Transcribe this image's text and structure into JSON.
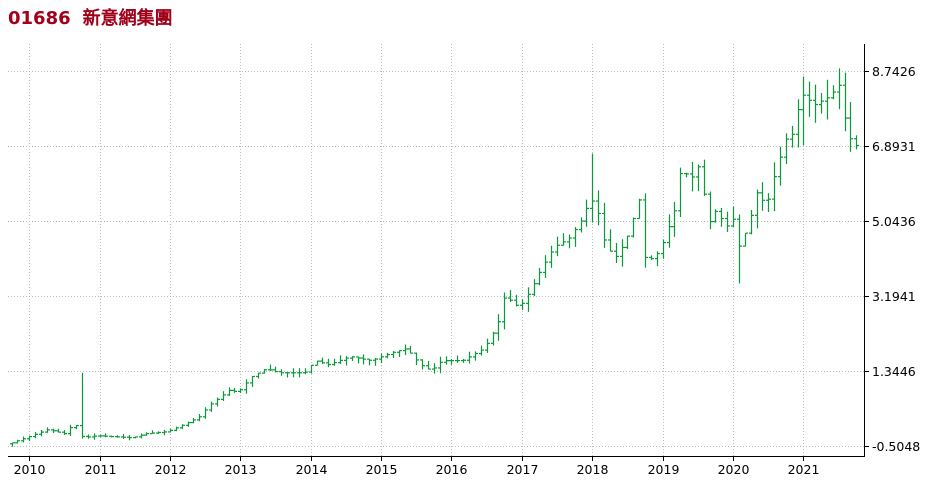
{
  "title": {
    "code": "01686",
    "name": "新意網集團"
  },
  "chart_data": {
    "type": "bar",
    "subtype": "ohlc-monthly",
    "series_color": "#0a9a3a",
    "grid": true,
    "grid_color": "#bcbcbc",
    "y_axis_position": "right",
    "ylim": [
      -0.75,
      9.4
    ],
    "yticks": [
      -0.5048,
      1.3446,
      3.1941,
      5.0436,
      6.8931,
      8.7426
    ],
    "ytick_labels": [
      "-0.5048",
      "1.3446",
      "3.1941",
      "5.0436",
      "6.8931",
      "8.7426"
    ],
    "xlim": [
      2009.7,
      2021.86
    ],
    "xticks": [
      2010,
      2011,
      2012,
      2013,
      2014,
      2015,
      2016,
      2017,
      2018,
      2019,
      2020,
      2021
    ],
    "xtick_labels": [
      "2010",
      "2011",
      "2012",
      "2013",
      "2014",
      "2015",
      "2016",
      "2017",
      "2018",
      "2019",
      "2020",
      "2021"
    ],
    "anchors": [
      [
        2009.75,
        -0.45
      ],
      [
        2010.0,
        -0.3
      ],
      [
        2010.3,
        -0.1
      ],
      [
        2010.55,
        -0.2
      ],
      [
        2010.65,
        0.0
      ],
      [
        2010.72,
        0.0
      ],
      [
        2010.8,
        -0.3
      ],
      [
        2011.0,
        -0.25
      ],
      [
        2011.5,
        -0.3
      ],
      [
        2011.7,
        -0.2
      ],
      [
        2012.0,
        -0.15
      ],
      [
        2012.2,
        0.0
      ],
      [
        2012.45,
        0.2
      ],
      [
        2012.6,
        0.5
      ],
      [
        2012.9,
        0.9
      ],
      [
        2013.0,
        0.8
      ],
      [
        2013.2,
        1.2
      ],
      [
        2013.4,
        1.4
      ],
      [
        2013.6,
        1.3
      ],
      [
        2013.95,
        1.3
      ],
      [
        2014.1,
        1.6
      ],
      [
        2014.3,
        1.5
      ],
      [
        2014.6,
        1.7
      ],
      [
        2014.9,
        1.6
      ],
      [
        2015.2,
        1.8
      ],
      [
        2015.4,
        1.9
      ],
      [
        2015.6,
        1.5
      ],
      [
        2015.75,
        1.35
      ],
      [
        2015.9,
        1.6
      ],
      [
        2016.2,
        1.6
      ],
      [
        2016.5,
        1.9
      ],
      [
        2016.6,
        2.2
      ],
      [
        2016.7,
        2.5
      ],
      [
        2016.8,
        3.2
      ],
      [
        2017.0,
        2.9
      ],
      [
        2017.15,
        3.3
      ],
      [
        2017.3,
        3.8
      ],
      [
        2017.5,
        4.4
      ],
      [
        2017.7,
        4.6
      ],
      [
        2017.9,
        5.1
      ],
      [
        2017.97,
        5.4
      ],
      [
        2018.08,
        5.6
      ],
      [
        2018.2,
        4.6
      ],
      [
        2018.35,
        4.1
      ],
      [
        2018.5,
        4.5
      ],
      [
        2018.6,
        4.9
      ],
      [
        2018.7,
        5.7
      ],
      [
        2018.8,
        4.0
      ],
      [
        2019.0,
        4.3
      ],
      [
        2019.1,
        4.8
      ],
      [
        2019.2,
        5.2
      ],
      [
        2019.3,
        6.3
      ],
      [
        2019.45,
        6.1
      ],
      [
        2019.55,
        6.4
      ],
      [
        2019.7,
        5.0
      ],
      [
        2019.8,
        5.3
      ],
      [
        2019.95,
        4.9
      ],
      [
        2020.05,
        5.1
      ],
      [
        2020.12,
        4.4
      ],
      [
        2020.25,
        4.9
      ],
      [
        2020.4,
        5.9
      ],
      [
        2020.5,
        5.3
      ],
      [
        2020.65,
        6.3
      ],
      [
        2020.8,
        7.1
      ],
      [
        2020.9,
        7.2
      ],
      [
        2021.0,
        8.2
      ],
      [
        2021.2,
        7.9
      ],
      [
        2021.4,
        8.1
      ],
      [
        2021.55,
        8.4
      ],
      [
        2021.65,
        7.3
      ],
      [
        2021.75,
        6.9
      ]
    ],
    "spikes": [
      {
        "x": 2010.72,
        "high": 1.3,
        "low": 0.0
      },
      {
        "x": 2010.77,
        "high": 1.2,
        "low": -0.2
      },
      {
        "x": 2018.0,
        "high": 6.7,
        "low": 5.0
      },
      {
        "x": 2020.12,
        "high": 5.2,
        "low": 3.5
      },
      {
        "x": 2021.5,
        "high": 8.8,
        "low": 7.8
      },
      {
        "x": 2021.0,
        "high": 8.6,
        "low": 6.9
      }
    ]
  }
}
